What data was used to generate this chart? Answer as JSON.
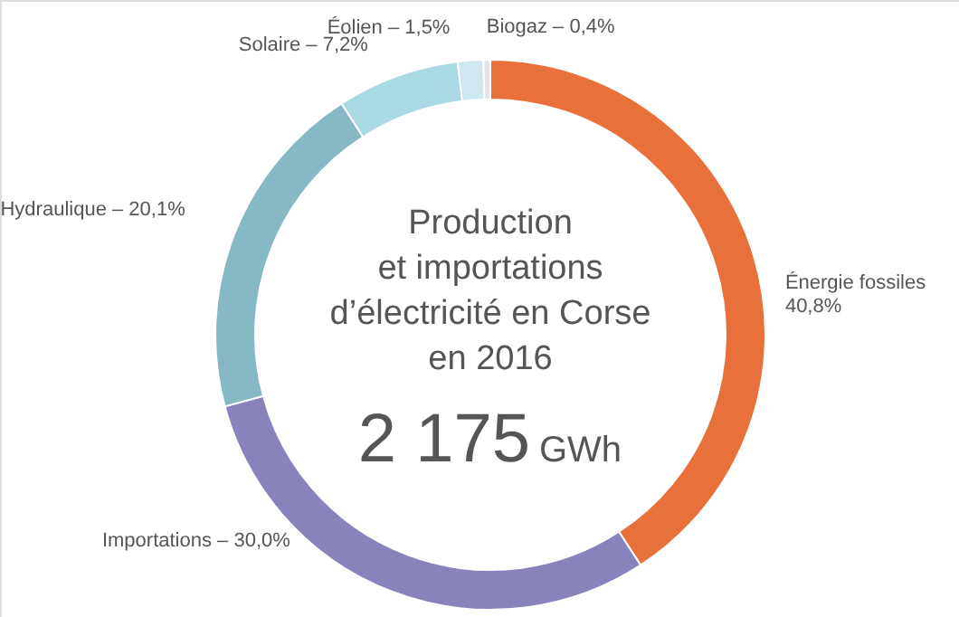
{
  "chart_data": {
    "type": "donut",
    "title": "Production\net importations\nd’électricité en Corse\nen 2016",
    "annotations": [
      "2 175",
      "GWh"
    ],
    "categories": [
      "Énergie fossiles",
      "Importations",
      "Hydraulique",
      "Solaire",
      "Éolien",
      "Biogaz"
    ],
    "values": [
      40.8,
      30.0,
      20.1,
      7.2,
      1.5,
      0.4
    ],
    "value_labels": [
      "40,8%",
      "30,0%",
      "20,1%",
      "7,2%",
      "1,5%",
      "0,4%"
    ],
    "colors": [
      "#e8703a",
      "#8882bd",
      "#87b9c5",
      "#a9d9e3",
      "#cde8ee",
      "#e3e3e3"
    ]
  }
}
